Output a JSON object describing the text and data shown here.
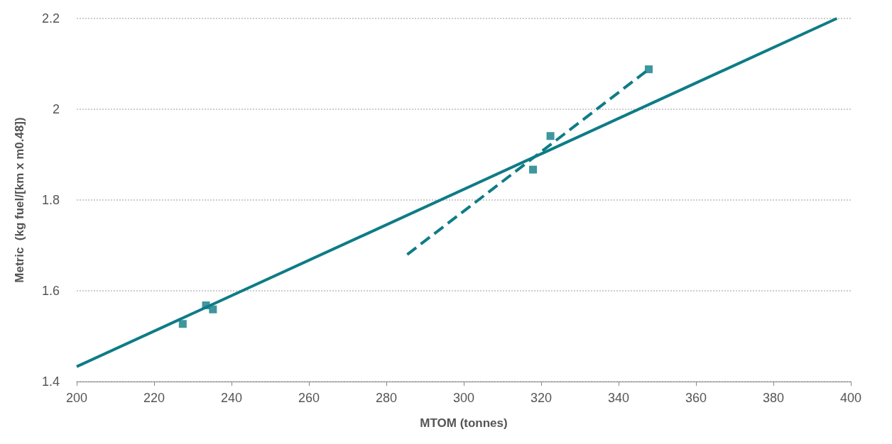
{
  "chart_data": {
    "type": "scatter",
    "xlabel": "MTOM (tonnes)",
    "ylabel": "Metric  (kg fuel/[km x m0.48])",
    "xlim": [
      200,
      400
    ],
    "xticks": [
      200,
      220,
      240,
      260,
      280,
      300,
      320,
      340,
      360,
      380,
      400
    ],
    "ylim": [
      1.4,
      2.2
    ],
    "yticks": [
      {
        "value": 1.4,
        "label": "1.4"
      },
      {
        "value": 1.6,
        "label": "1.6"
      },
      {
        "value": 1.8,
        "label": "1.8"
      },
      {
        "value": 2.0,
        "label": "2"
      },
      {
        "value": 2.2,
        "label": "2.2"
      }
    ],
    "grid": "y",
    "series": [
      {
        "color": "#0e7c86",
        "marker": "square",
        "x": [
          227.4,
          233.4,
          235.2,
          317.9,
          322.4,
          347.8
        ],
        "values": [
          1.527,
          1.568,
          1.559,
          1.867,
          1.941,
          2.088
        ]
      },
      {
        "type": "line",
        "color": "#0e7c86",
        "marker": "none",
        "line_style": "solid",
        "x": [
          200,
          396.4
        ],
        "values": [
          1.433,
          2.2
        ]
      },
      {
        "type": "line",
        "color": "#0e7c86",
        "marker": "none",
        "line_style": "dashed",
        "x": [
          285.4,
          347.8
        ],
        "values": [
          1.68,
          2.088
        ]
      }
    ]
  }
}
